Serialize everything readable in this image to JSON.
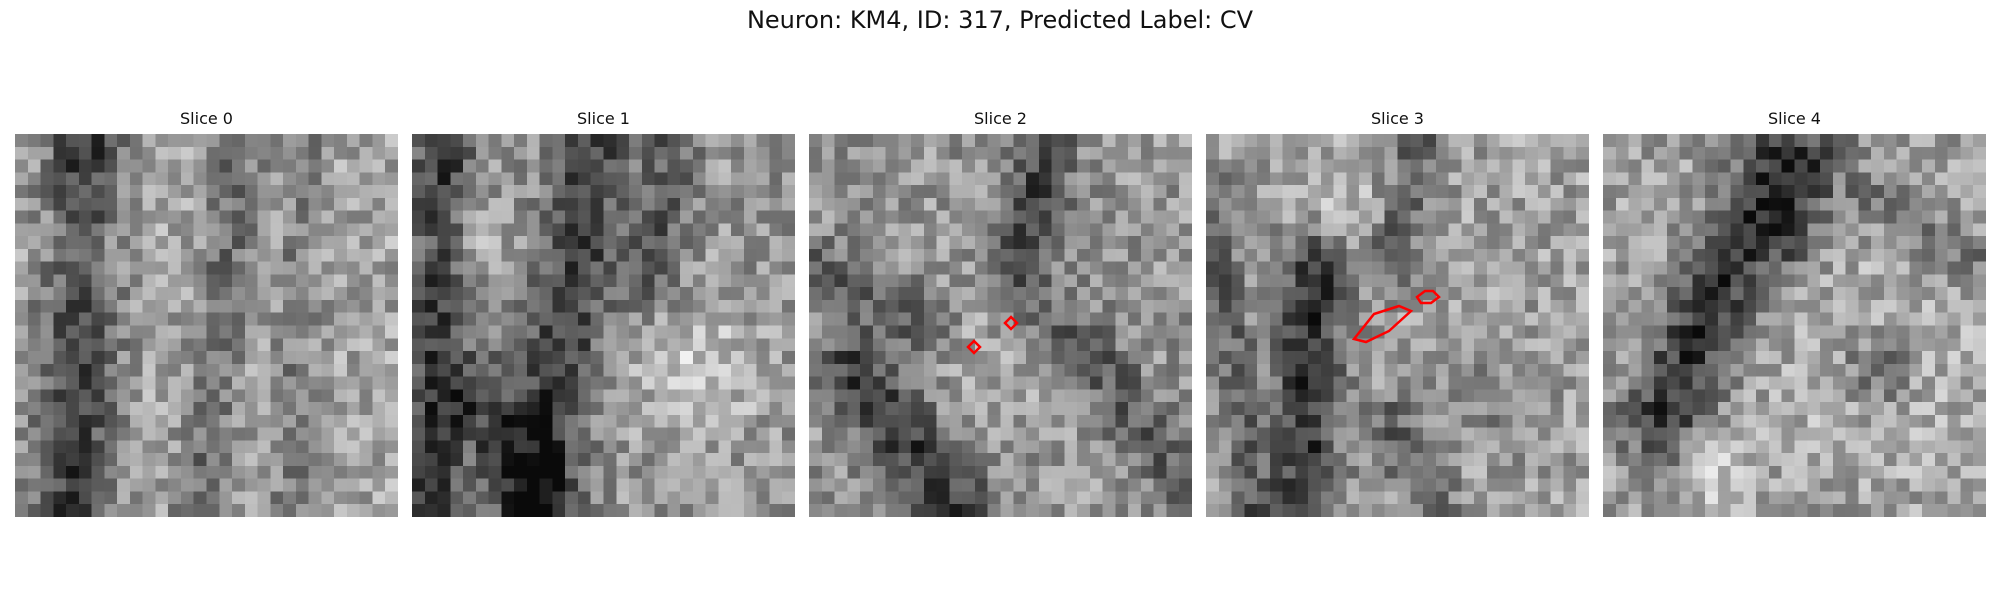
{
  "figure": {
    "title": "Neuron: KM4, ID: 317, Predicted Label: CV"
  },
  "panels": [
    {
      "label": "Slice 0"
    },
    {
      "label": "Slice 1"
    },
    {
      "label": "Slice 2"
    },
    {
      "label": "Slice 3"
    },
    {
      "label": "Slice 4"
    }
  ],
  "colors": {
    "contour": "#ff0000",
    "background": "#ffffff"
  }
}
